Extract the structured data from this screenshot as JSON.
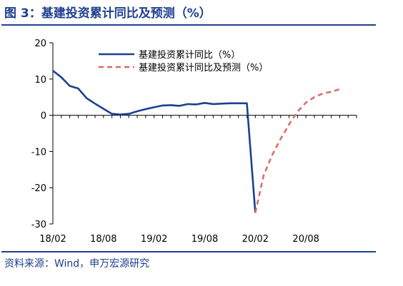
{
  "figure": {
    "title": "图 3：基建投资累计同比及预测（%）",
    "source": "资料来源：Wind，申万宏源研究",
    "colors": {
      "accent": "#1f3f8f",
      "actual": "#1f3f8f",
      "forecast": "#e06666"
    }
  },
  "chart_data": {
    "type": "line",
    "title": "",
    "xlabel": "",
    "ylabel": "",
    "ylim": [
      -30,
      20
    ],
    "yticks": [
      20,
      10,
      0,
      -10,
      -20,
      -30
    ],
    "x_tick_labels": [
      "18/02",
      "18/08",
      "19/02",
      "19/08",
      "20/02",
      "20/08"
    ],
    "x_tick_months": [
      0,
      6,
      12,
      18,
      24,
      30
    ],
    "x_range_months": [
      0,
      36
    ],
    "grid": false,
    "legend_position": "top",
    "series": [
      {
        "name": "基建投资累计同比（%）",
        "style": "solid",
        "color": "#1f3f8f",
        "x_month": [
          0,
          1,
          2,
          3,
          4,
          5,
          6,
          7,
          8,
          9,
          10,
          11,
          12,
          13,
          14,
          15,
          16,
          17,
          18,
          19,
          20,
          21,
          22,
          23,
          24
        ],
        "values": [
          12.3,
          10.5,
          8.1,
          7.4,
          4.7,
          3.2,
          1.8,
          0.4,
          0.2,
          0.4,
          1.1,
          1.7,
          2.2,
          2.7,
          2.8,
          2.6,
          3.1,
          3.0,
          3.4,
          3.1,
          3.2,
          3.3,
          3.3,
          3.3,
          -26.9
        ]
      },
      {
        "name": "基建投资累计同比及预测（%）",
        "style": "dashed",
        "color": "#e06666",
        "x_month": [
          24,
          25,
          26,
          27,
          28,
          29,
          30,
          31,
          32,
          33,
          34
        ],
        "values": [
          -26.9,
          -16.5,
          -11.0,
          -6.5,
          -2.5,
          1.0,
          3.5,
          5.0,
          6.0,
          6.5,
          7.2
        ]
      }
    ]
  }
}
